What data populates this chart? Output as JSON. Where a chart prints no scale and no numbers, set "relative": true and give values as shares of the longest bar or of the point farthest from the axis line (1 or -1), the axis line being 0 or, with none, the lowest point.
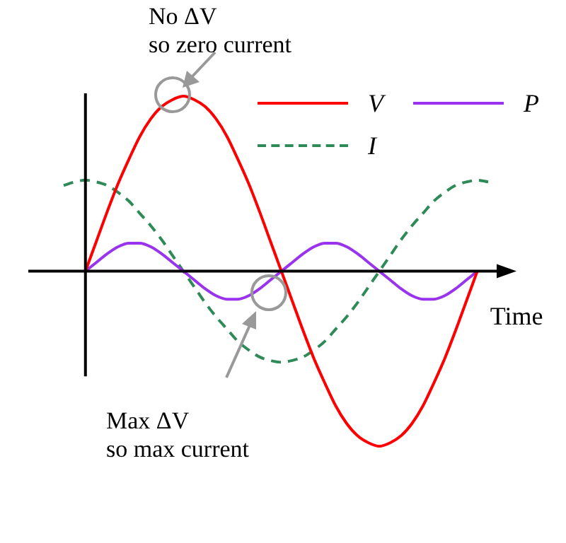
{
  "chart_data": {
    "type": "line",
    "relative": true,
    "xlabel": "Time",
    "legend": "top right",
    "marker": "none",
    "categories": [
      null,
      null,
      null,
      null,
      null,
      null,
      null,
      null,
      null,
      null,
      null,
      null,
      null,
      null,
      null,
      null,
      null,
      null,
      null,
      null,
      null,
      null,
      null,
      null,
      null,
      null,
      null,
      null,
      null,
      null,
      null,
      null,
      null,
      null,
      null,
      null,
      null,
      null,
      null,
      null
    ],
    "series": [
      {
        "name": "V",
        "color": "#ff0000",
        "line_style": "solid",
        "values": [
          null,
          null,
          0,
          0.17,
          0.34,
          0.5,
          0.64,
          0.77,
          0.87,
          0.94,
          0.98,
          1,
          0.98,
          0.94,
          0.87,
          0.77,
          0.64,
          0.5,
          0.34,
          0.17,
          0,
          -0.17,
          -0.34,
          -0.5,
          -0.64,
          -0.77,
          -0.87,
          -0.94,
          -0.98,
          -1,
          -0.98,
          -0.94,
          -0.87,
          -0.77,
          -0.64,
          -0.5,
          -0.34,
          -0.17,
          0,
          null
        ]
      },
      {
        "name": "P",
        "color": "#9933ee",
        "line_style": "solid",
        "values": [
          null,
          null,
          0,
          0.05,
          0.1,
          0.14,
          0.16,
          0.16,
          0.14,
          0.1,
          0.05,
          0,
          -0.05,
          -0.1,
          -0.14,
          -0.16,
          -0.16,
          -0.14,
          -0.1,
          -0.05,
          0,
          0.05,
          0.1,
          0.14,
          0.16,
          0.16,
          0.14,
          0.1,
          0.05,
          0,
          -0.05,
          -0.1,
          -0.14,
          -0.16,
          -0.16,
          -0.14,
          -0.1,
          -0.05,
          0,
          null
        ]
      },
      {
        "name": "I",
        "color": "#2e8b57",
        "line_style": "dashed",
        "values": [
          0.49,
          0.51,
          0.52,
          0.51,
          0.49,
          0.45,
          0.4,
          0.33,
          0.26,
          0.18,
          0.09,
          0,
          -0.09,
          -0.18,
          -0.26,
          -0.33,
          -0.4,
          -0.45,
          -0.49,
          -0.51,
          -0.52,
          -0.51,
          -0.49,
          -0.45,
          -0.4,
          -0.33,
          -0.26,
          -0.18,
          -0.09,
          0,
          0.09,
          0.18,
          0.26,
          0.33,
          0.4,
          0.45,
          0.49,
          0.51,
          0.52,
          0.51
        ]
      }
    ],
    "annotations": [
      "No ΔV\nso zero current",
      "Max ΔV\nso max current"
    ]
  }
}
